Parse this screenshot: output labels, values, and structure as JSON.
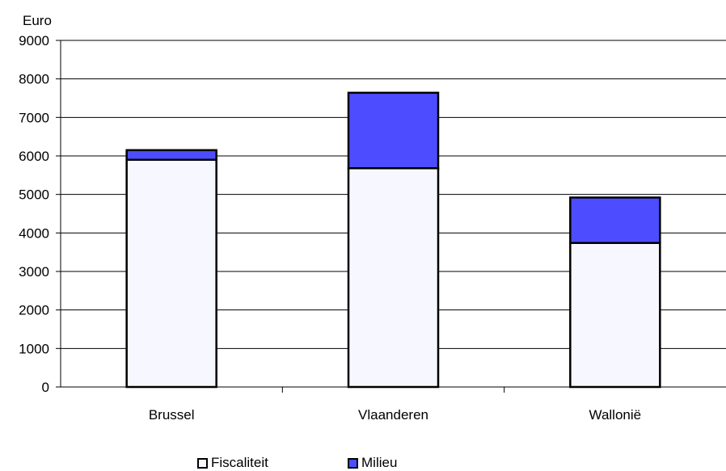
{
  "chart_data": {
    "type": "bar",
    "stacked": true,
    "categories": [
      "Brussel",
      "Vlaanderen",
      "Wallonië"
    ],
    "series": [
      {
        "name": "Fiscaliteit",
        "values": [
          5900,
          5680,
          3740
        ],
        "color": "#f7f7ff"
      },
      {
        "name": "Milieu",
        "values": [
          250,
          1960,
          1180
        ],
        "color": "#4d4dff"
      }
    ],
    "ylabel": "Euro",
    "ylim": [
      0,
      9000
    ],
    "yticks": [
      "0",
      "1000",
      "2000",
      "3000",
      "4000",
      "5000",
      "6000",
      "7000",
      "8000",
      "9000"
    ],
    "grid": true,
    "legend": "bottom"
  }
}
